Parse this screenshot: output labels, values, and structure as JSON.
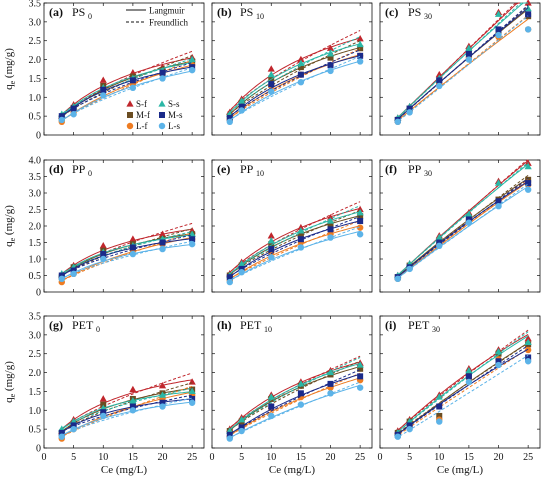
{
  "chart_data": {
    "type": "scatter",
    "x_values": [
      3,
      5,
      10,
      15,
      20,
      25
    ],
    "fit_legend": [
      {
        "label": "Langmuir",
        "dash": "solid"
      },
      {
        "label": "Freundlich",
        "dash": "dashed"
      }
    ],
    "series_legend": [
      {
        "key": "Sf",
        "label": "S-f",
        "marker": "triangle",
        "color": "#c0262c"
      },
      {
        "key": "Mf",
        "label": "M-f",
        "marker": "square",
        "color": "#6b4d22"
      },
      {
        "key": "Lf",
        "label": "L-f",
        "marker": "circle",
        "color": "#ee7c22"
      },
      {
        "key": "Ss",
        "label": "S-s",
        "marker": "triangle",
        "color": "#2ab7a6"
      },
      {
        "key": "Ms",
        "label": "M-s",
        "marker": "square",
        "color": "#1a2a8a"
      },
      {
        "key": "Ls",
        "label": "L-s",
        "marker": "circle",
        "color": "#5cb3e8"
      }
    ],
    "rows": [
      {
        "ylabel": "q",
        "ylabel_sub": "e",
        "ylabel_tail": " (mg/g)",
        "ylim": [
          0,
          3.5
        ],
        "yticks": [
          "0",
          "0.5",
          "1.0",
          "1.5",
          "2.0",
          "2.5",
          "3.0",
          "3.5"
        ],
        "ytick_values": [
          0,
          0.5,
          1,
          1.5,
          2,
          2.5,
          3,
          3.5
        ]
      },
      {
        "ylabel": "q",
        "ylabel_sub": "e",
        "ylabel_tail": " (mg/g)",
        "ylim": [
          0,
          4.0
        ],
        "yticks": [
          "0",
          "0.5",
          "1.0",
          "1.5",
          "2.0",
          "2.5",
          "3.0",
          "3.5",
          "4.0"
        ],
        "ytick_values": [
          0,
          0.5,
          1,
          1.5,
          2,
          2.5,
          3,
          3.5,
          4
        ]
      },
      {
        "ylabel": "q",
        "ylabel_sub": "e",
        "ylabel_tail": " (mg/g)",
        "ylim": [
          0,
          3.5
        ],
        "yticks": [
          "0",
          "0.5",
          "1.0",
          "1.5",
          "2.0",
          "2.5",
          "3.0",
          "3.5"
        ],
        "ytick_values": [
          0,
          0.5,
          1,
          1.5,
          2,
          2.5,
          3,
          3.5
        ]
      }
    ],
    "xaxis": {
      "label": "Ce (mg/L)",
      "xlim": [
        0,
        27
      ],
      "xticks": [
        "0",
        "5",
        "10",
        "15",
        "20",
        "25"
      ],
      "xtick_values": [
        0,
        5,
        10,
        15,
        20,
        25
      ]
    },
    "panels": [
      {
        "tag": "(a)",
        "name": "PS",
        "sub": "0",
        "row": 0,
        "col": 0,
        "series": {
          "Sf": [
            0.5,
            0.8,
            1.45,
            1.65,
            1.8,
            2.05
          ],
          "Mf": [
            0.45,
            0.72,
            1.3,
            1.55,
            1.72,
            1.95
          ],
          "Lf": [
            0.35,
            0.6,
            1.15,
            1.35,
            1.6,
            1.85
          ],
          "Ss": [
            0.55,
            0.75,
            1.25,
            1.5,
            1.7,
            2.0
          ],
          "Ms": [
            0.5,
            0.7,
            1.2,
            1.45,
            1.65,
            1.8
          ],
          "Ls": [
            0.4,
            0.55,
            1.05,
            1.25,
            1.5,
            1.72
          ]
        }
      },
      {
        "tag": "(b)",
        "name": "PS",
        "sub": "10",
        "row": 0,
        "col": 1,
        "series": {
          "Sf": [
            0.6,
            0.95,
            1.75,
            2.0,
            2.3,
            2.55
          ],
          "Mf": [
            0.5,
            0.85,
            1.5,
            1.8,
            2.05,
            2.3
          ],
          "Lf": [
            0.4,
            0.7,
            1.3,
            1.6,
            1.85,
            2.1
          ],
          "Ss": [
            0.55,
            0.9,
            1.6,
            1.9,
            2.15,
            2.4
          ],
          "Ms": [
            0.45,
            0.75,
            1.35,
            1.6,
            1.85,
            2.1
          ],
          "Ls": [
            0.35,
            0.65,
            1.15,
            1.4,
            1.7,
            1.95
          ]
        }
      },
      {
        "tag": "(c)",
        "name": "PS",
        "sub": "30",
        "row": 0,
        "col": 2,
        "series": {
          "Sf": [
            0.45,
            0.75,
            1.6,
            2.35,
            3.25,
            3.5
          ],
          "Mf": [
            0.4,
            0.7,
            1.45,
            2.2,
            2.75,
            3.15
          ],
          "Lf": [
            0.35,
            0.65,
            1.35,
            2.05,
            2.6,
            2.8
          ],
          "Ss": [
            0.45,
            0.75,
            1.5,
            2.3,
            3.2,
            3.35
          ],
          "Ms": [
            0.4,
            0.7,
            1.45,
            2.15,
            2.8,
            3.2
          ],
          "Ls": [
            0.35,
            0.6,
            1.3,
            2.0,
            2.65,
            2.8
          ]
        }
      },
      {
        "tag": "(d)",
        "name": "PP",
        "sub": "0",
        "row": 1,
        "col": 0,
        "series": {
          "Sf": [
            0.5,
            0.8,
            1.4,
            1.6,
            1.75,
            1.85
          ],
          "Mf": [
            0.45,
            0.75,
            1.25,
            1.45,
            1.6,
            1.75
          ],
          "Lf": [
            0.3,
            0.55,
            1.05,
            1.25,
            1.45,
            1.6
          ],
          "Ss": [
            0.55,
            0.75,
            1.2,
            1.4,
            1.6,
            1.75
          ],
          "Ms": [
            0.5,
            0.65,
            1.15,
            1.35,
            1.5,
            1.6
          ],
          "Ls": [
            0.4,
            0.55,
            1.0,
            1.15,
            1.3,
            1.45
          ]
        }
      },
      {
        "tag": "(e)",
        "name": "PP",
        "sub": "10",
        "row": 1,
        "col": 1,
        "series": {
          "Sf": [
            0.55,
            0.9,
            1.7,
            1.95,
            2.25,
            2.5
          ],
          "Mf": [
            0.5,
            0.8,
            1.45,
            1.75,
            2.05,
            2.3
          ],
          "Lf": [
            0.35,
            0.65,
            1.2,
            1.5,
            1.75,
            1.95
          ],
          "Ss": [
            0.5,
            0.85,
            1.55,
            1.85,
            2.15,
            2.4
          ],
          "Ms": [
            0.45,
            0.7,
            1.3,
            1.6,
            1.9,
            2.15
          ],
          "Ls": [
            0.3,
            0.6,
            1.05,
            1.35,
            1.65,
            1.75
          ]
        }
      },
      {
        "tag": "(f)",
        "name": "PP",
        "sub": "30",
        "row": 1,
        "col": 2,
        "series": {
          "Sf": [
            0.5,
            0.85,
            1.7,
            2.4,
            3.35,
            3.9
          ],
          "Mf": [
            0.45,
            0.8,
            1.55,
            2.25,
            2.8,
            3.4
          ],
          "Lf": [
            0.4,
            0.75,
            1.45,
            2.15,
            2.7,
            3.25
          ],
          "Ss": [
            0.5,
            0.85,
            1.65,
            2.35,
            3.3,
            3.8
          ],
          "Ms": [
            0.45,
            0.75,
            1.5,
            2.2,
            2.75,
            3.3
          ],
          "Ls": [
            0.4,
            0.7,
            1.4,
            2.1,
            2.6,
            3.1
          ]
        }
      },
      {
        "tag": "(g)",
        "name": "PET",
        "sub": "0",
        "row": 2,
        "col": 0,
        "series": {
          "Sf": [
            0.45,
            0.75,
            1.3,
            1.55,
            1.65,
            1.75
          ],
          "Mf": [
            0.4,
            0.65,
            1.15,
            1.3,
            1.45,
            1.55
          ],
          "Lf": [
            0.25,
            0.5,
            1.0,
            1.15,
            1.3,
            1.4
          ],
          "Ss": [
            0.5,
            0.7,
            1.05,
            1.25,
            1.4,
            1.5
          ],
          "Ms": [
            0.4,
            0.6,
            0.95,
            1.1,
            1.2,
            1.3
          ],
          "Ls": [
            0.3,
            0.5,
            0.85,
            1.0,
            1.1,
            1.2
          ]
        }
      },
      {
        "tag": "(h)",
        "name": "PET",
        "sub": "10",
        "row": 2,
        "col": 1,
        "series": {
          "Sf": [
            0.5,
            0.8,
            1.4,
            1.75,
            2.05,
            2.25
          ],
          "Mf": [
            0.45,
            0.7,
            1.3,
            1.65,
            1.95,
            2.1
          ],
          "Lf": [
            0.3,
            0.55,
            1.05,
            1.35,
            1.6,
            1.8
          ],
          "Ss": [
            0.45,
            0.75,
            1.35,
            1.7,
            2.0,
            2.2
          ],
          "Ms": [
            0.35,
            0.55,
            1.1,
            1.45,
            1.7,
            1.9
          ],
          "Ls": [
            0.25,
            0.45,
            0.85,
            1.15,
            1.45,
            1.6
          ]
        }
      },
      {
        "tag": "(i)",
        "name": "PET",
        "sub": "30",
        "row": 2,
        "col": 2,
        "series": {
          "Sf": [
            0.45,
            0.75,
            1.4,
            2.1,
            2.6,
            2.9
          ],
          "Mf": [
            0.4,
            0.7,
            0.85,
            1.95,
            2.5,
            2.75
          ],
          "Lf": [
            0.35,
            0.6,
            0.75,
            1.85,
            2.35,
            2.6
          ],
          "Ss": [
            0.4,
            0.7,
            1.35,
            2.05,
            2.55,
            2.8
          ],
          "Ms": [
            0.35,
            0.6,
            1.1,
            1.9,
            2.3,
            2.4
          ],
          "Ls": [
            0.3,
            0.5,
            0.7,
            1.75,
            2.2,
            2.3
          ]
        }
      }
    ]
  }
}
